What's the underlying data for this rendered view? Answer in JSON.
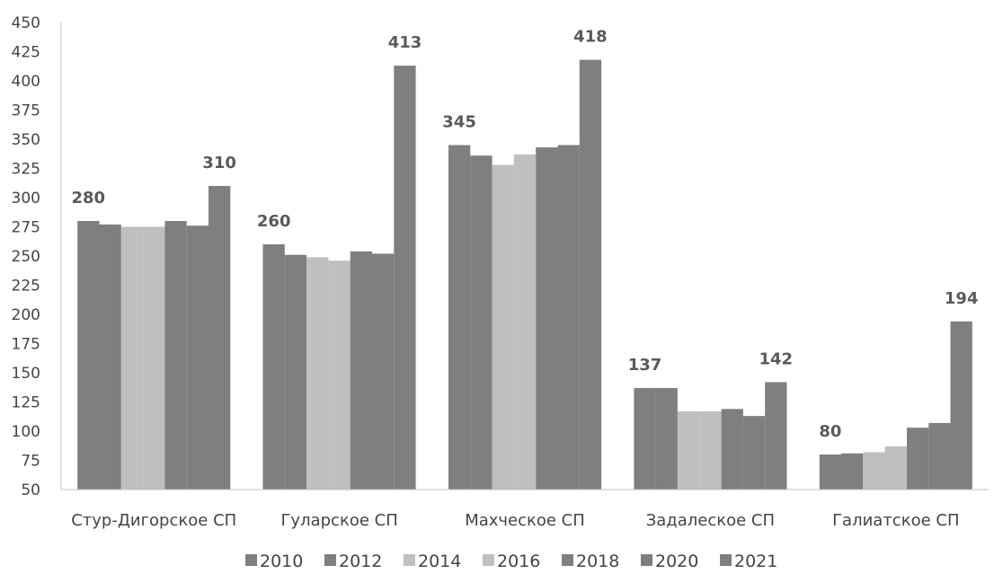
{
  "chart_data": {
    "type": "bar",
    "title": "",
    "xlabel": "",
    "ylabel": "",
    "ylim": [
      50,
      450
    ],
    "ytick_step": 25,
    "grid": false,
    "legend_position": "bottom",
    "categories": [
      "Стур-Дигорское СП",
      "Гуларское СП",
      "Махческое СП",
      "Задалеское СП",
      "Галиатское СП"
    ],
    "series": [
      {
        "name": "2010",
        "color": "#7f7f7f",
        "values": [
          280,
          260,
          345,
          137,
          80
        ]
      },
      {
        "name": "2012",
        "color": "#7f7f7f",
        "values": [
          277,
          251,
          336,
          137,
          81
        ]
      },
      {
        "name": "2014",
        "color": "#bfbfbf",
        "values": [
          275,
          249,
          328,
          117,
          82
        ]
      },
      {
        "name": "2016",
        "color": "#bfbfbf",
        "values": [
          275,
          246,
          337,
          117,
          87
        ]
      },
      {
        "name": "2018",
        "color": "#7f7f7f",
        "values": [
          280,
          254,
          343,
          119,
          103
        ]
      },
      {
        "name": "2020",
        "color": "#7f7f7f",
        "values": [
          276,
          252,
          345,
          113,
          107
        ]
      },
      {
        "name": "2021",
        "color": "#7f7f7f",
        "values": [
          310,
          413,
          418,
          142,
          194
        ]
      }
    ],
    "data_labels": [
      {
        "category": 0,
        "series": 0,
        "text": "280"
      },
      {
        "category": 0,
        "series": 6,
        "text": "310"
      },
      {
        "category": 1,
        "series": 0,
        "text": "260"
      },
      {
        "category": 1,
        "series": 6,
        "text": "413"
      },
      {
        "category": 2,
        "series": 0,
        "text": "345"
      },
      {
        "category": 2,
        "series": 6,
        "text": "418"
      },
      {
        "category": 3,
        "series": 0,
        "text": "137"
      },
      {
        "category": 3,
        "series": 6,
        "text": "142"
      },
      {
        "category": 4,
        "series": 0,
        "text": "80"
      },
      {
        "category": 4,
        "series": 6,
        "text": "194"
      }
    ]
  }
}
